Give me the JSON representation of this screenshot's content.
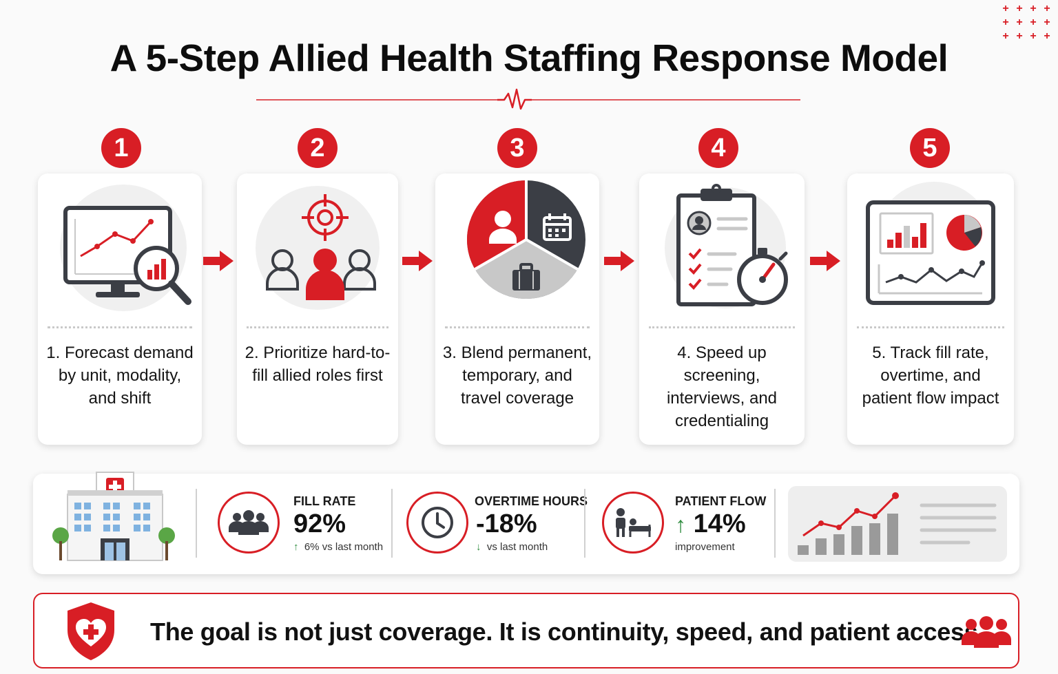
{
  "title": "A 5-Step Allied Health Staffing Response Model",
  "colors": {
    "accent": "#d81e25",
    "dark": "#3b3e45",
    "gray": "#c8c8c8",
    "positive": "#2e8b3e"
  },
  "steps": [
    {
      "number": "1",
      "label": "1. Forecast demand by unit, modality, and shift",
      "icon": "monitor-chart-magnifier-icon"
    },
    {
      "number": "2",
      "label": "2. Prioritize hard-to-fill allied roles first",
      "icon": "target-people-icon"
    },
    {
      "number": "3",
      "label": "3. Blend permanent, temporary, and travel coverage",
      "icon": "coverage-pie-icon"
    },
    {
      "number": "4",
      "label": "4. Speed up screening, interviews, and credentialing",
      "icon": "clipboard-stopwatch-icon"
    },
    {
      "number": "5",
      "label": "5. Track fill rate, overtime, and patient flow impact",
      "icon": "dashboard-icon"
    }
  ],
  "metrics": [
    {
      "heading": "FILL RATE",
      "value": "92%",
      "trend": "up",
      "sub": "6% vs last month",
      "icon": "team-icon"
    },
    {
      "heading": "OVERTIME HOURS",
      "value": "-18%",
      "trend": "down",
      "sub": "vs last month",
      "icon": "clock-icon"
    },
    {
      "heading": "PATIENT FLOW",
      "value": "14%",
      "trend": "up",
      "sub": "improvement",
      "icon": "patient-bed-icon"
    }
  ],
  "goal": "The goal is not just coverage. It is continuity, speed, and patient access."
}
